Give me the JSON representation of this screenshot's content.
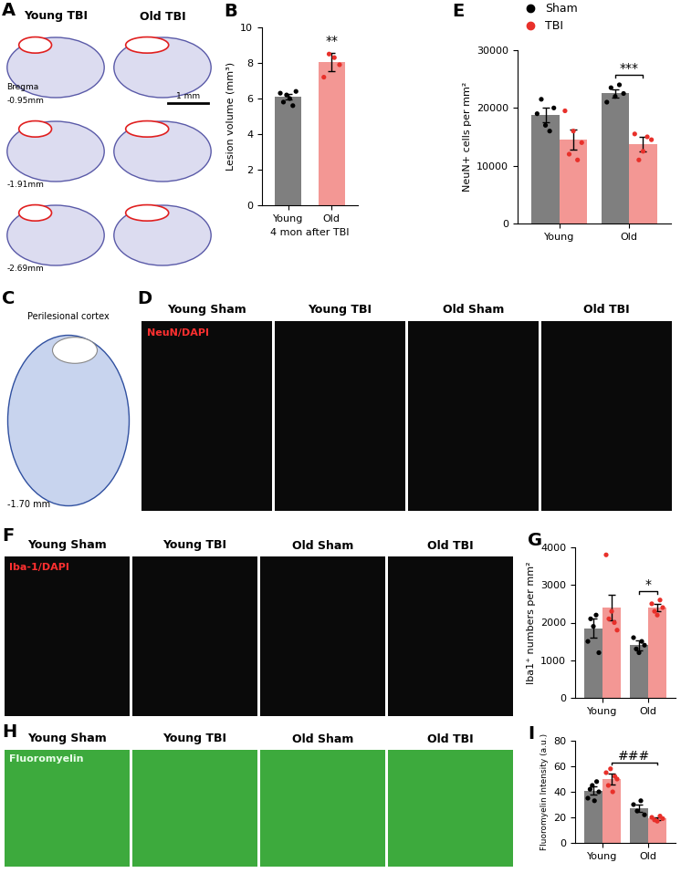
{
  "chart_data": [
    {
      "title": "B",
      "type": "bar",
      "categories": [
        "Young",
        "Old"
      ],
      "values": [
        6.1,
        8.05
      ],
      "errors": [
        0.15,
        0.5
      ],
      "points": [
        [
          6.3,
          5.8,
          6.2,
          6.0,
          5.6,
          6.4
        ],
        [
          7.2,
          8.5,
          8.3,
          7.9
        ]
      ],
      "colors": [
        "#000000",
        "#e8302a"
      ],
      "xlabel": "4 mon after TBI",
      "ylabel": "Lesion volume (mm³)",
      "ylim": [
        0,
        10
      ],
      "yticks": [
        0,
        2,
        4,
        6,
        8,
        10
      ],
      "annotations": [
        {
          "text": "**",
          "category": "Old"
        }
      ]
    },
    {
      "title": "E",
      "type": "bar",
      "categories": [
        "Young",
        "Old"
      ],
      "series": [
        {
          "name": "Sham",
          "color": "#000000",
          "values": [
            18800,
            22500
          ],
          "errors": [
            1300,
            700
          ],
          "points": [
            [
              19000,
              21500,
              17000,
              16000,
              20000
            ],
            [
              21000,
              23500,
              22000,
              24000,
              22500
            ]
          ]
        },
        {
          "name": "TBI",
          "color": "#e8302a",
          "values": [
            14500,
            13700
          ],
          "errors": [
            1700,
            1300
          ],
          "points": [
            [
              19500,
              12000,
              16000,
              11000,
              14000
            ],
            [
              15500,
              11000,
              12500,
              15000,
              14500
            ]
          ]
        }
      ],
      "ylabel": "NeuN+ cells per mm²",
      "ylim": [
        0,
        30000
      ],
      "yticks": [
        0,
        10000,
        20000,
        30000
      ],
      "legend": "upper left",
      "annotations": [
        {
          "text": "***",
          "from": {
            "category": "Old",
            "series": "Sham"
          },
          "to": {
            "category": "Old",
            "series": "TBI"
          }
        }
      ]
    },
    {
      "title": "G",
      "type": "bar",
      "categories": [
        "Young",
        "Old"
      ],
      "series": [
        {
          "name": "Sham",
          "color": "#000000",
          "values": [
            1850,
            1400
          ],
          "errors": [
            250,
            130
          ],
          "points": [
            [
              1500,
              2100,
              1900,
              2200,
              1200
            ],
            [
              1600,
              1300,
              1200,
              1500,
              1400
            ]
          ]
        },
        {
          "name": "TBI",
          "color": "#e8302a",
          "values": [
            2400,
            2400
          ],
          "errors": [
            350,
            90
          ],
          "points": [
            [
              3800,
              2100,
              2300,
              2000,
              1800
            ],
            [
              2500,
              2300,
              2200,
              2600,
              2400
            ]
          ]
        }
      ],
      "ylabel": "Iba1⁺ numbers per mm²",
      "ylim": [
        0,
        4000
      ],
      "yticks": [
        0,
        1000,
        2000,
        3000,
        4000
      ],
      "annotations": [
        {
          "text": "*",
          "from": {
            "category": "Old",
            "series": "Sham"
          },
          "to": {
            "category": "Old",
            "series": "TBI"
          }
        }
      ]
    },
    {
      "title": "I",
      "type": "bar",
      "categories": [
        "Young",
        "Old"
      ],
      "series": [
        {
          "name": "Sham",
          "color": "#000000",
          "values": [
            41,
            27
          ],
          "errors": [
            3,
            3
          ],
          "points": [
            [
              35,
              42,
              45,
              33,
              48,
              40
            ],
            [
              30,
              25,
              33,
              22
            ]
          ]
        },
        {
          "name": "TBI",
          "color": "#e8302a",
          "values": [
            50,
            19
          ],
          "errors": [
            4,
            1
          ],
          "points": [
            [
              55,
              45,
              58,
              40,
              52,
              50
            ],
            [
              20,
              18,
              17,
              21,
              19
            ]
          ]
        }
      ],
      "ylabel": "Fluoromyelin Intensity (a.u.)",
      "ylim": [
        0,
        80
      ],
      "yticks": [
        0,
        20,
        40,
        60,
        80
      ],
      "annotations": [
        {
          "text": "###",
          "from": {
            "category": "Young",
            "series": "TBI"
          },
          "to": {
            "category": "Old",
            "series": "TBI"
          }
        }
      ]
    }
  ],
  "image_panels": {
    "A": {
      "title": "A",
      "columns": [
        "Young TBI",
        "Old TBI"
      ],
      "bregma_label": "Bregma",
      "sections": [
        "-0.95mm",
        "-1.91mm",
        "-2.69mm"
      ],
      "scale_bar": "1 mm"
    },
    "C": {
      "title": "C",
      "label": "Perilesional cortex",
      "section": "-1.70 mm"
    },
    "D": {
      "title": "D",
      "columns": [
        "Young Sham",
        "Young TBI",
        "Old Sham",
        "Old TBI"
      ],
      "stain": "NeuN/DAPI"
    },
    "F": {
      "title": "F",
      "columns": [
        "Young Sham",
        "Young TBI",
        "Old Sham",
        "Old TBI"
      ],
      "stain": "Iba-1/DAPI"
    },
    "H": {
      "title": "H",
      "columns": [
        "Young Sham",
        "Young TBI",
        "Old Sham",
        "Old TBI"
      ],
      "stain": "Fluoromyelin"
    }
  }
}
